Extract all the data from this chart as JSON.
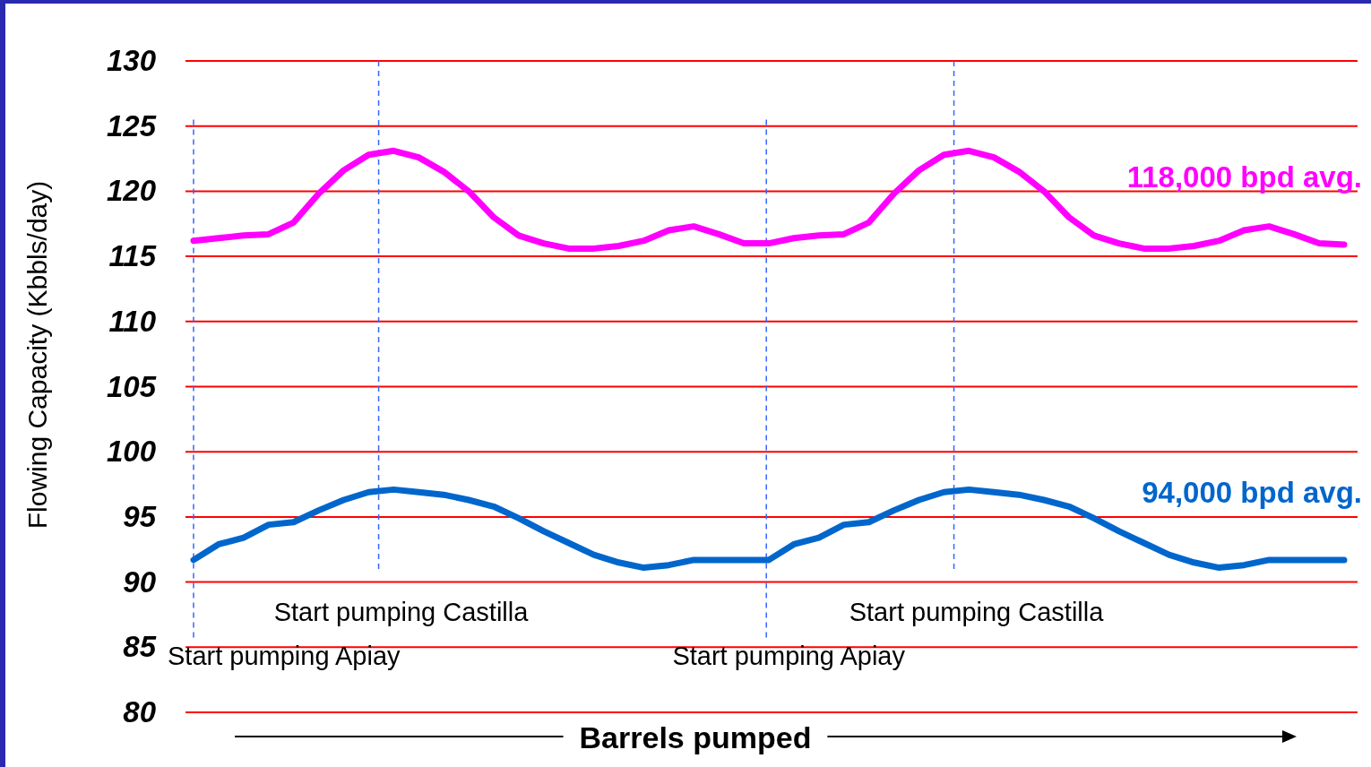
{
  "chart_data": {
    "type": "line",
    "xlabel": "Barrels pumped",
    "ylabel": "Flowing Capacity (Kbbls/day)",
    "categories": [
      null,
      null,
      null,
      null,
      null,
      null,
      null,
      null,
      null,
      null,
      null,
      null,
      null,
      null,
      null,
      null,
      null,
      null,
      null,
      null,
      null,
      null,
      null,
      null,
      null,
      null,
      null,
      null,
      null,
      null,
      null,
      null,
      null,
      null,
      null,
      null,
      null,
      null,
      null,
      null,
      null,
      null,
      null,
      null,
      null,
      null,
      null
    ],
    "series": [
      {
        "name": "118,000 bpd avg.",
        "color": "#ff00ff",
        "values": [
          116.2,
          116.4,
          116.6,
          116.7,
          117.6,
          119.8,
          121.6,
          122.8,
          123.1,
          122.6,
          121.5,
          120.0,
          118.0,
          116.6,
          116.0,
          115.6,
          115.6,
          115.8,
          116.2,
          117.0,
          117.3,
          116.7,
          116.0,
          116.0,
          116.4,
          116.6,
          116.7,
          117.6,
          119.8,
          121.6,
          122.8,
          123.1,
          122.6,
          121.5,
          120.0,
          118.0,
          116.6,
          116.0,
          115.6,
          115.6,
          115.8,
          116.2,
          117.0,
          117.3,
          116.7,
          116.0,
          115.9
        ]
      },
      {
        "name": "94,000 bpd avg.",
        "color": "#0066cc",
        "values": [
          91.7,
          92.9,
          93.4,
          94.4,
          94.6,
          95.5,
          96.3,
          96.9,
          97.1,
          96.9,
          96.7,
          96.3,
          95.8,
          94.9,
          93.9,
          93.0,
          92.1,
          91.5,
          91.1,
          91.3,
          91.7,
          91.7,
          91.7,
          91.7,
          92.9,
          93.4,
          94.4,
          94.6,
          95.5,
          96.3,
          96.9,
          97.1,
          96.9,
          96.7,
          96.3,
          95.8,
          94.9,
          93.9,
          93.0,
          92.1,
          91.5,
          91.1,
          91.3,
          91.7,
          91.7,
          91.7,
          91.7
        ]
      }
    ],
    "ylim": [
      80,
      130
    ],
    "yticks": [
      80,
      85,
      90,
      95,
      100,
      105,
      110,
      115,
      120,
      125,
      130
    ],
    "grid": "y",
    "tick_labels": "y",
    "marker": "none",
    "line_style": "solid",
    "annotations": [
      "Start pumping Apiay",
      "Start pumping Castilla",
      "Start pumping Apiay",
      "Start pumping Castilla"
    ]
  }
}
